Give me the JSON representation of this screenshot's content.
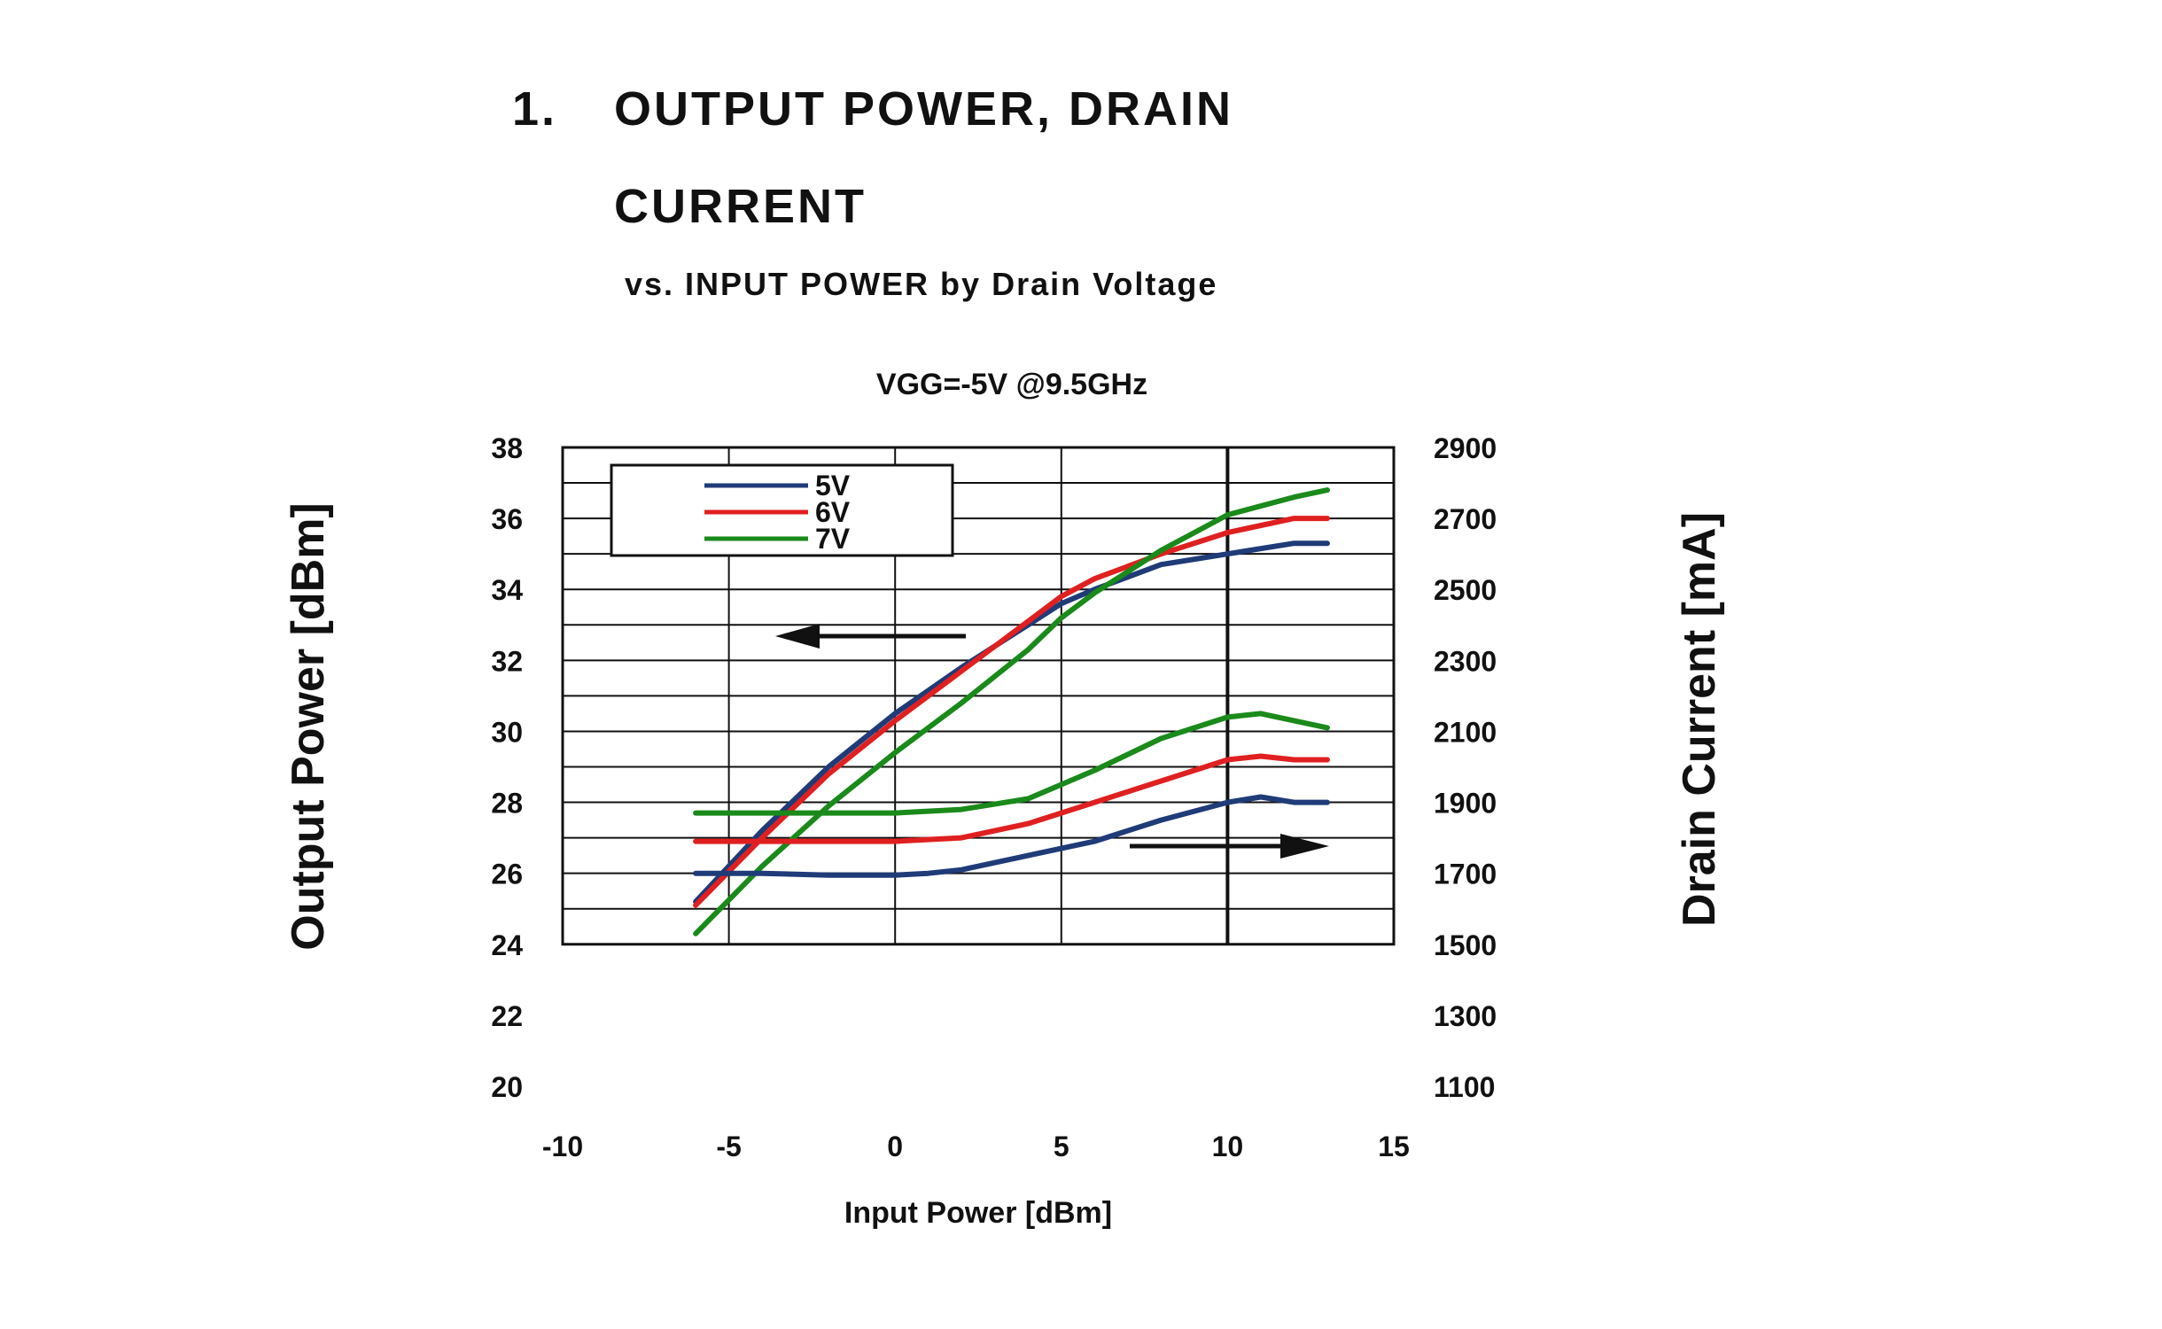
{
  "heading": {
    "number": "1.",
    "line1": "OUTPUT POWER, DRAIN",
    "line2": "CURRENT",
    "subtitle": "vs. INPUT POWER by Drain Voltage"
  },
  "chart_data": {
    "type": "line",
    "title": "VGG=-5V @9.5GHz",
    "xlabel": "Input Power [dBm]",
    "ylabel": "Output Power [dBm]",
    "y2label": "Drain Current [mA]",
    "xlim": [
      -10,
      15
    ],
    "ylim": [
      20,
      38
    ],
    "y2lim": [
      1100,
      2900
    ],
    "xticks": [
      "-10",
      "-5",
      "0",
      "5",
      "10",
      "15"
    ],
    "yticks": [
      "20",
      "22",
      "24",
      "26",
      "28",
      "30",
      "32",
      "34",
      "36",
      "38"
    ],
    "y2ticks": [
      "1100",
      "1300",
      "1500",
      "1700",
      "1900",
      "2100",
      "2300",
      "2500",
      "2700",
      "2900"
    ],
    "grid": true,
    "plot_area_y": [
      24,
      38
    ],
    "legend_position": "top-left",
    "colors": {
      "5V": "#1f3b78",
      "6V": "#e02020",
      "7V": "#1a8a1a"
    },
    "series": [
      {
        "name": "5V",
        "axis": "left",
        "quantity": "Output Power",
        "x": [
          -6,
          -4,
          -2,
          0,
          2,
          4,
          5,
          6,
          8,
          10,
          12,
          13
        ],
        "y": [
          25.2,
          27.2,
          29.0,
          30.5,
          31.8,
          33.0,
          33.6,
          34.0,
          34.7,
          35.0,
          35.3,
          35.3
        ]
      },
      {
        "name": "6V",
        "axis": "left",
        "quantity": "Output Power",
        "x": [
          -6,
          -4,
          -2,
          0,
          2,
          4,
          5,
          6,
          8,
          10,
          12,
          13
        ],
        "y": [
          25.1,
          27.0,
          28.8,
          30.3,
          31.7,
          33.1,
          33.8,
          34.3,
          35.0,
          35.6,
          36.0,
          36.0
        ]
      },
      {
        "name": "7V",
        "axis": "left",
        "quantity": "Output Power",
        "x": [
          -6,
          -4,
          -2,
          0,
          2,
          4,
          5,
          6,
          8,
          10,
          12,
          13
        ],
        "y": [
          24.3,
          26.2,
          27.9,
          29.4,
          30.8,
          32.3,
          33.2,
          33.9,
          35.1,
          36.1,
          36.6,
          36.8
        ]
      },
      {
        "name": "5V",
        "axis": "right",
        "quantity": "Drain Current",
        "x": [
          -6,
          -4,
          -2,
          0,
          1,
          2,
          4,
          6,
          8,
          10,
          11,
          12,
          13
        ],
        "y": [
          1700,
          1700,
          1695,
          1695,
          1700,
          1710,
          1750,
          1790,
          1850,
          1900,
          1915,
          1900,
          1900
        ]
      },
      {
        "name": "6V",
        "axis": "right",
        "quantity": "Drain Current",
        "x": [
          -6,
          -4,
          -2,
          0,
          2,
          4,
          6,
          8,
          10,
          11,
          12,
          13
        ],
        "y": [
          1790,
          1790,
          1790,
          1790,
          1800,
          1840,
          1900,
          1960,
          2020,
          2030,
          2020,
          2020
        ]
      },
      {
        "name": "7V",
        "axis": "right",
        "quantity": "Drain Current",
        "x": [
          -6,
          -4,
          -2,
          0,
          2,
          4,
          6,
          8,
          10,
          11,
          12,
          13
        ],
        "y": [
          1870,
          1870,
          1870,
          1870,
          1880,
          1910,
          1990,
          2080,
          2140,
          2150,
          2130,
          2110
        ]
      }
    ],
    "annotations": [
      {
        "type": "arrow",
        "direction": "left",
        "meaning": "curves read on left axis"
      },
      {
        "type": "arrow",
        "direction": "right",
        "meaning": "curves read on right axis"
      }
    ]
  }
}
